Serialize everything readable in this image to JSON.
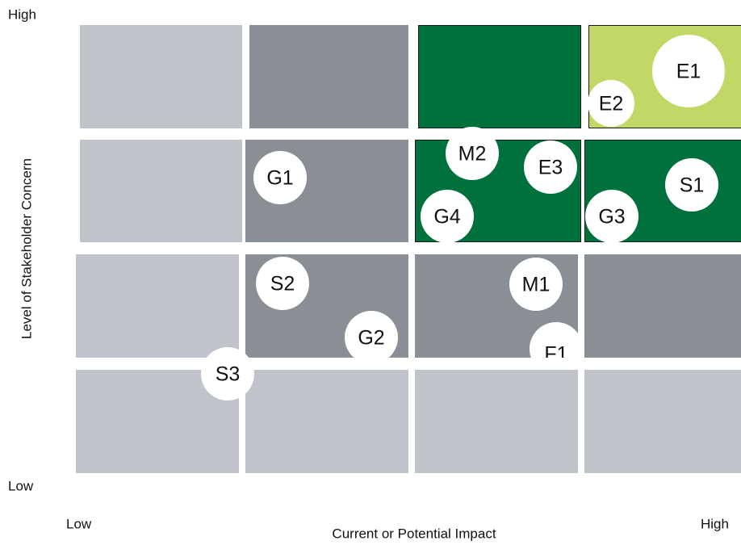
{
  "y_axis": {
    "title": "Level of Stakeholder Concern",
    "high": "High",
    "low": "Low"
  },
  "x_axis": {
    "title": "Current or Potential Impact",
    "low": "Low",
    "high": "High"
  },
  "bubbles": [
    {
      "label": "E1"
    },
    {
      "label": "E2"
    },
    {
      "label": "M2"
    },
    {
      "label": "E3"
    },
    {
      "label": "G1"
    },
    {
      "label": "S1"
    },
    {
      "label": "G4"
    },
    {
      "label": "G3"
    },
    {
      "label": "S2"
    },
    {
      "label": "M1"
    },
    {
      "label": "G2"
    },
    {
      "label": "F1"
    },
    {
      "label": "S3"
    }
  ]
}
